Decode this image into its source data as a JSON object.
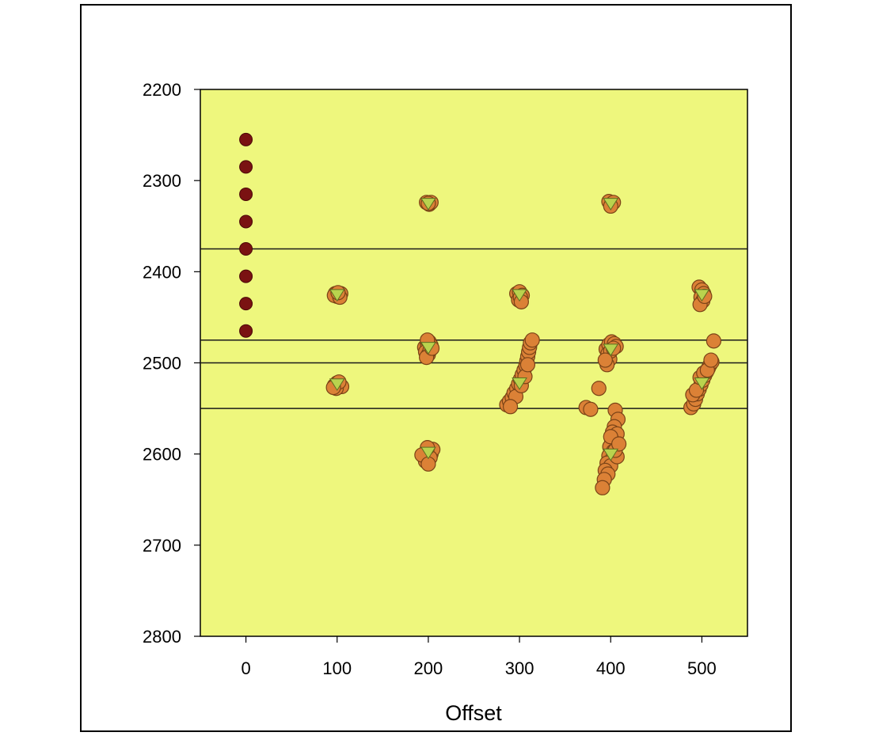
{
  "chart_data": {
    "type": "scatter",
    "title": "",
    "xlabel": "Offset",
    "ylabel": "",
    "xlim": [
      -50,
      550
    ],
    "ylim": [
      2800,
      2200
    ],
    "y_inverted": true,
    "grid": false,
    "legend": "none",
    "x_ticks": [
      "0",
      "100",
      "200",
      "300",
      "400",
      "500"
    ],
    "y_ticks": [
      "2200",
      "2300",
      "2400",
      "2500",
      "2600",
      "2700",
      "2800"
    ],
    "reference_lines_y": [
      2375,
      2475,
      2500,
      2550
    ],
    "colors": {
      "plot_background": "#eef77d",
      "frame": "#000000",
      "reference_line": "#1a1a1a",
      "source_marker": "#7a1212",
      "picks_marker": "#db8136",
      "picks_marker_edge": "#7a4317",
      "model_marker": "#b9d34e",
      "model_marker_edge": "#5f6f20"
    },
    "series": [
      {
        "marker": "dark-red-circle",
        "points": [
          [
            0,
            2255
          ],
          [
            0,
            2285
          ],
          [
            0,
            2315
          ],
          [
            0,
            2345
          ],
          [
            0,
            2375
          ],
          [
            0,
            2405
          ],
          [
            0,
            2435
          ],
          [
            0,
            2465
          ]
        ]
      },
      {
        "marker": "orange-circle",
        "points": [
          [
            98,
            2424
          ],
          [
            102,
            2426
          ],
          [
            104,
            2424
          ],
          [
            100,
            2427
          ],
          [
            97,
            2426
          ],
          [
            103,
            2428
          ],
          [
            101,
            2423
          ],
          [
            97,
            2525
          ],
          [
            100,
            2522
          ],
          [
            103,
            2524
          ],
          [
            105,
            2526
          ],
          [
            99,
            2528
          ],
          [
            102,
            2521
          ],
          [
            96,
            2527
          ],
          [
            198,
            2324
          ],
          [
            201,
            2326
          ],
          [
            203,
            2324
          ],
          [
            200,
            2325
          ],
          [
            196,
            2483
          ],
          [
            199,
            2479
          ],
          [
            201,
            2477
          ],
          [
            203,
            2481
          ],
          [
            197,
            2488
          ],
          [
            200,
            2491
          ],
          [
            202,
            2486
          ],
          [
            198,
            2494
          ],
          [
            204,
            2484
          ],
          [
            199,
            2475
          ],
          [
            195,
            2603
          ],
          [
            198,
            2600
          ],
          [
            201,
            2597
          ],
          [
            203,
            2600
          ],
          [
            205,
            2595
          ],
          [
            197,
            2608
          ],
          [
            200,
            2606
          ],
          [
            202,
            2604
          ],
          [
            199,
            2593
          ],
          [
            193,
            2601
          ],
          [
            200,
            2611
          ],
          [
            297,
            2424
          ],
          [
            300,
            2422
          ],
          [
            303,
            2426
          ],
          [
            299,
            2431
          ],
          [
            301,
            2428
          ],
          [
            302,
            2433
          ],
          [
            286,
            2546
          ],
          [
            289,
            2542
          ],
          [
            292,
            2538
          ],
          [
            294,
            2533
          ],
          [
            297,
            2528
          ],
          [
            299,
            2523
          ],
          [
            301,
            2518
          ],
          [
            303,
            2513
          ],
          [
            305,
            2508
          ],
          [
            307,
            2503
          ],
          [
            308,
            2498
          ],
          [
            309,
            2493
          ],
          [
            310,
            2488
          ],
          [
            311,
            2483
          ],
          [
            312,
            2478
          ],
          [
            314,
            2475
          ],
          [
            296,
            2537
          ],
          [
            302,
            2525
          ],
          [
            306,
            2515
          ],
          [
            309,
            2502
          ],
          [
            290,
            2548
          ],
          [
            398,
            2323
          ],
          [
            401,
            2326
          ],
          [
            403,
            2324
          ],
          [
            400,
            2328
          ],
          [
            395,
            2485
          ],
          [
            398,
            2480
          ],
          [
            401,
            2477
          ],
          [
            404,
            2479
          ],
          [
            406,
            2482
          ],
          [
            397,
            2490
          ],
          [
            399,
            2496
          ],
          [
            396,
            2502
          ],
          [
            400,
            2487
          ],
          [
            403,
            2484
          ],
          [
            394,
            2497
          ],
          [
            373,
            2549
          ],
          [
            378,
            2551
          ],
          [
            387,
            2528
          ],
          [
            405,
            2552
          ],
          [
            408,
            2562
          ],
          [
            404,
            2570
          ],
          [
            402,
            2576
          ],
          [
            407,
            2578
          ],
          [
            401,
            2584
          ],
          [
            405,
            2588
          ],
          [
            399,
            2592
          ],
          [
            403,
            2597
          ],
          [
            398,
            2602
          ],
          [
            402,
            2605
          ],
          [
            396,
            2610
          ],
          [
            400,
            2613
          ],
          [
            394,
            2618
          ],
          [
            397,
            2622
          ],
          [
            393,
            2628
          ],
          [
            391,
            2637
          ],
          [
            407,
            2603
          ],
          [
            405,
            2596
          ],
          [
            400,
            2581
          ],
          [
            409,
            2589
          ],
          [
            497,
            2417
          ],
          [
            500,
            2420
          ],
          [
            502,
            2424
          ],
          [
            499,
            2428
          ],
          [
            501,
            2432
          ],
          [
            498,
            2436
          ],
          [
            503,
            2427
          ],
          [
            488,
            2549
          ],
          [
            491,
            2545
          ],
          [
            493,
            2540
          ],
          [
            495,
            2534
          ],
          [
            497,
            2529
          ],
          [
            499,
            2524
          ],
          [
            501,
            2519
          ],
          [
            503,
            2514
          ],
          [
            505,
            2510
          ],
          [
            507,
            2506
          ],
          [
            509,
            2502
          ],
          [
            511,
            2499
          ],
          [
            513,
            2476
          ],
          [
            490,
            2535
          ],
          [
            494,
            2530
          ],
          [
            498,
            2516
          ],
          [
            502,
            2511
          ],
          [
            506,
            2508
          ],
          [
            510,
            2497
          ]
        ]
      },
      {
        "marker": "green-triangle-down",
        "points": [
          [
            100,
            2425
          ],
          [
            100,
            2523
          ],
          [
            200,
            2325
          ],
          [
            200,
            2483
          ],
          [
            200,
            2598
          ],
          [
            300,
            2425
          ],
          [
            300,
            2522
          ],
          [
            400,
            2325
          ],
          [
            400,
            2485
          ],
          [
            400,
            2600
          ],
          [
            500,
            2425
          ],
          [
            500,
            2522
          ]
        ]
      }
    ]
  }
}
